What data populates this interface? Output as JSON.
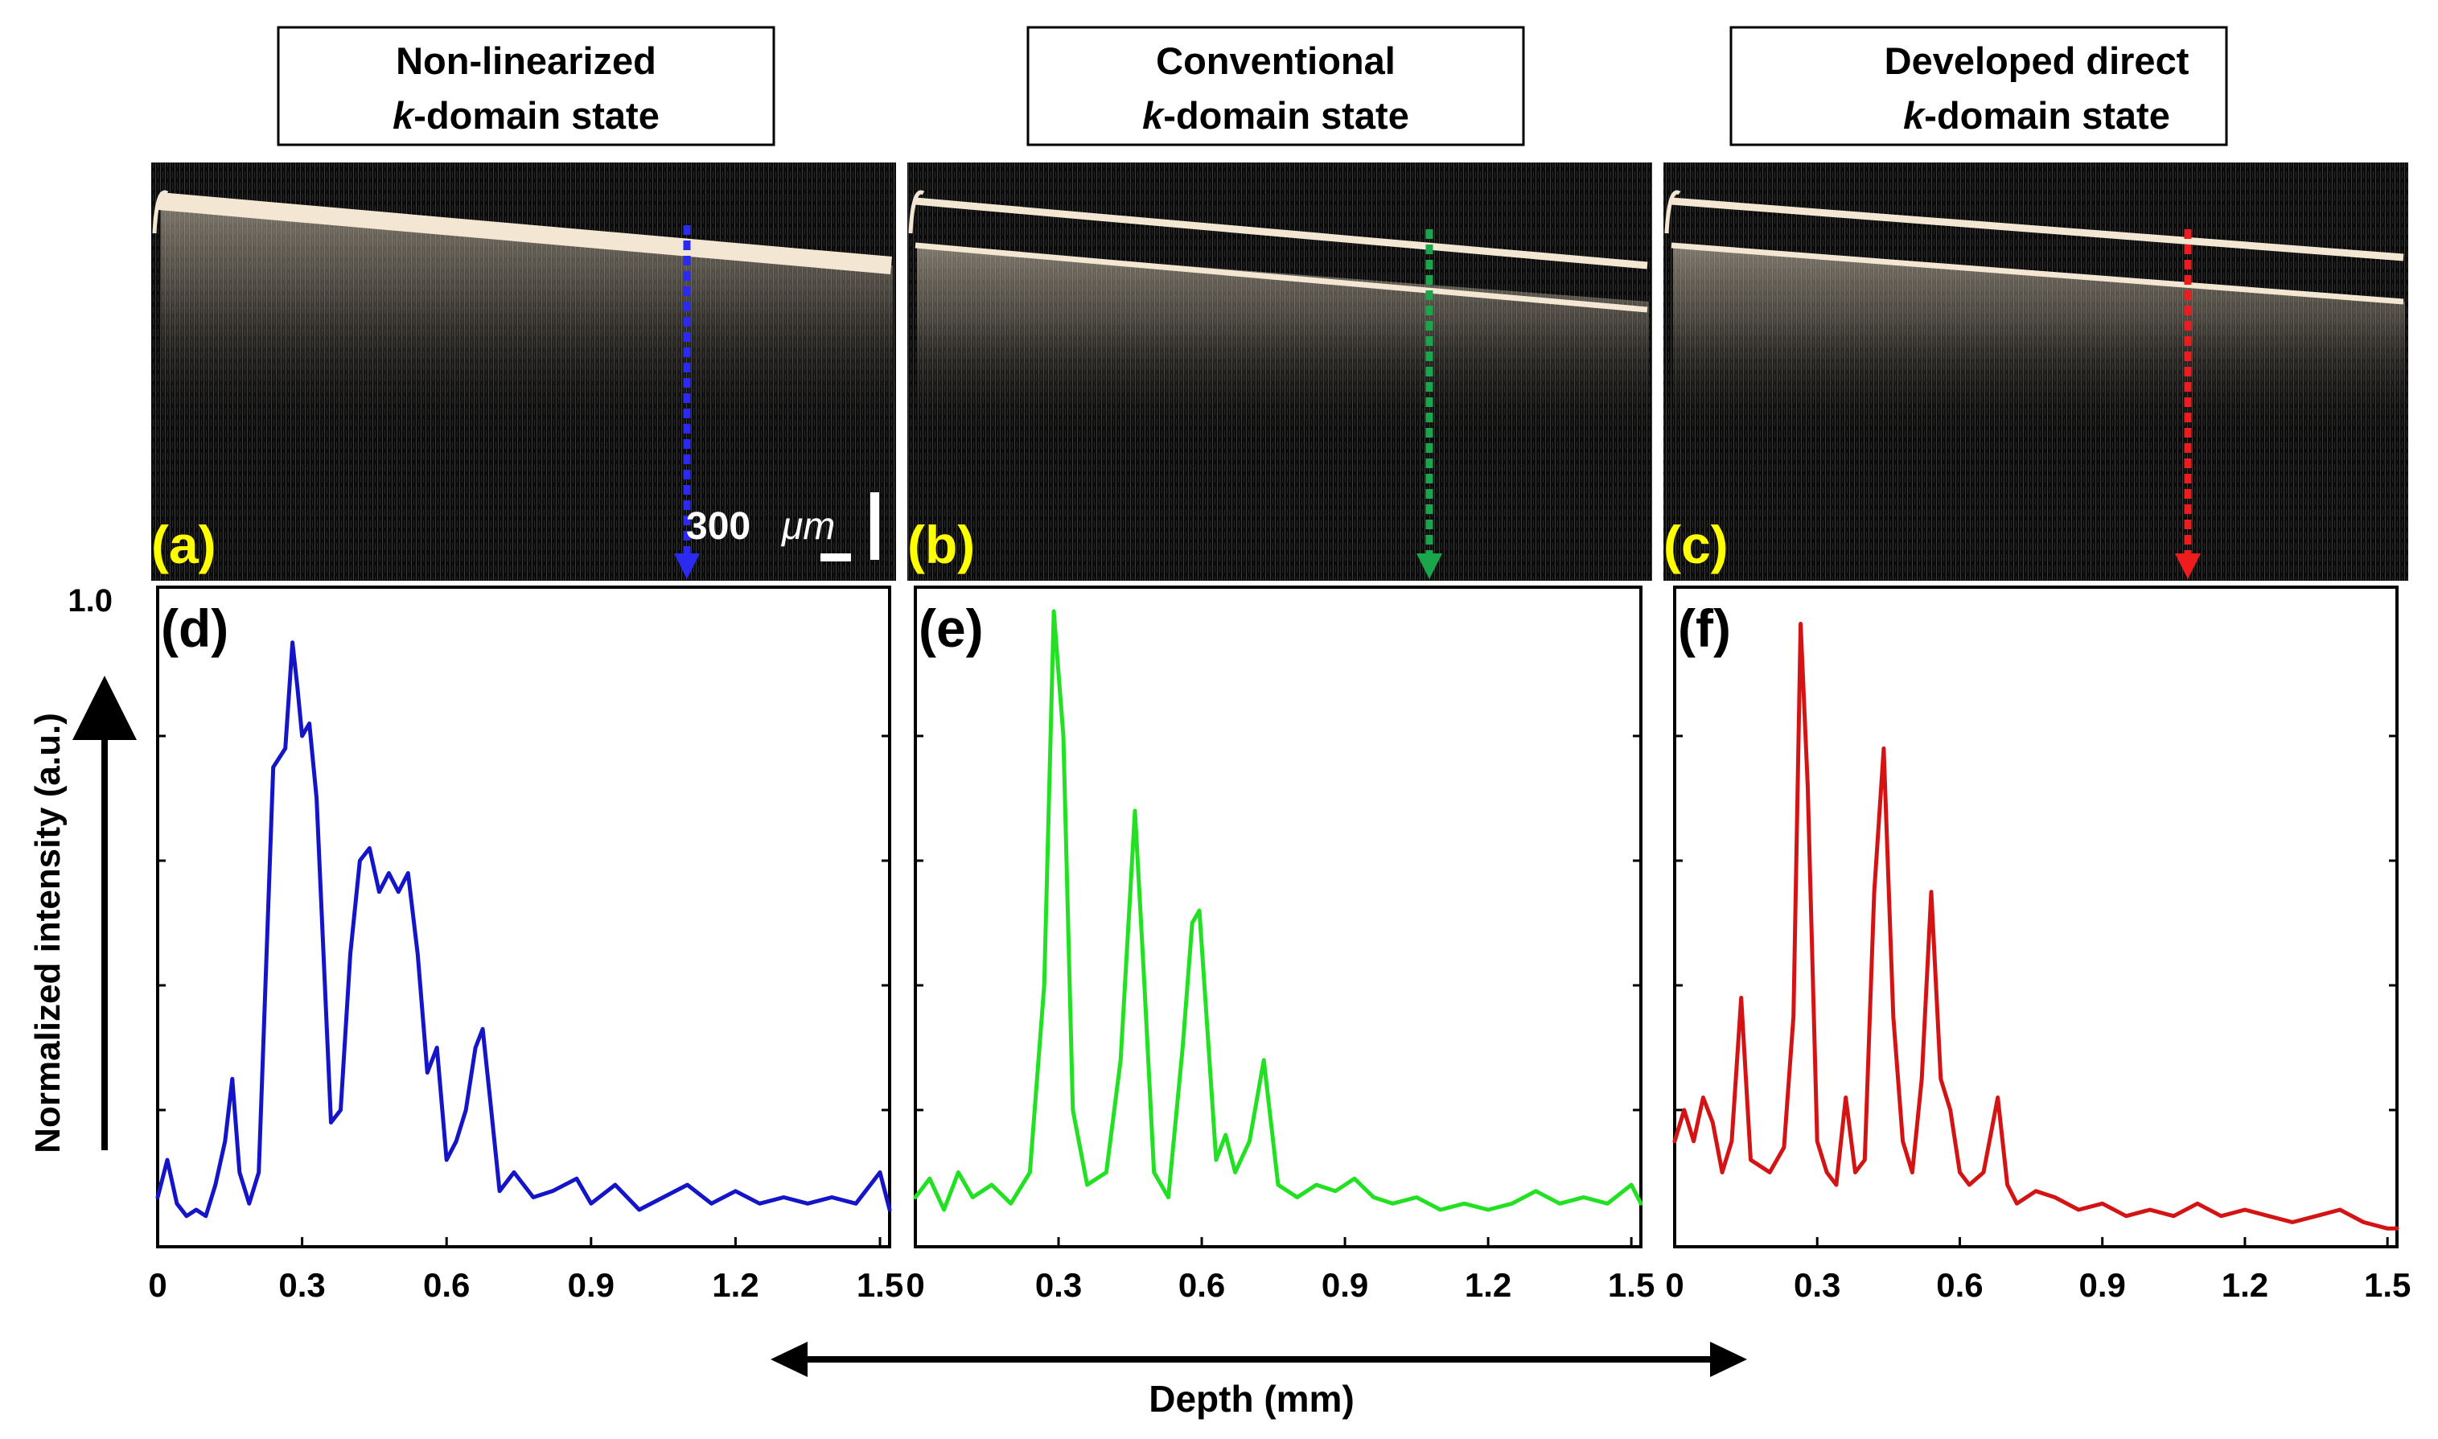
{
  "figure": {
    "panel_titles": [
      {
        "line1": "Non-linearized",
        "k": "k",
        "rest": "-domain state"
      },
      {
        "line1": "Conventional",
        "k": "k",
        "rest": "-domain state"
      },
      {
        "line1": "Developed direct",
        "k": "k",
        "rest": "-domain state"
      }
    ],
    "image_panels": [
      {
        "label": "(a)",
        "arrow_color": "#2a2af0"
      },
      {
        "label": "(b)",
        "arrow_color": "#1aa64a"
      },
      {
        "label": "(c)",
        "arrow_color": "#ee1c1c"
      }
    ],
    "scale_bar": {
      "value": "300",
      "unit": "μm"
    },
    "y_axis_label": "Normalized intensity (a.u.)",
    "y_axis_max_label": "1.0",
    "x_axis_label": "Depth (mm)",
    "label_color": "#ffff00",
    "image_bg": "#0b0b0b",
    "image_line_color": "#f3e6d2"
  },
  "chart_data": [
    {
      "type": "line",
      "panel": "(d)",
      "title": "Non-linearized k-domain state",
      "xlabel": "Depth (mm)",
      "ylabel": "Normalized intensity (a.u.)",
      "xlim": [
        0,
        1.52
      ],
      "ylim": [
        0,
        1.0
      ],
      "xticks": [
        0,
        0.3,
        0.6,
        0.9,
        1.2,
        1.5
      ],
      "xtick_labels": [
        "0",
        "0.3",
        "0.6",
        "0.9",
        "1.2",
        "1.5"
      ],
      "color": "#1414c8",
      "x": [
        0.0,
        0.02,
        0.04,
        0.06,
        0.08,
        0.1,
        0.12,
        0.14,
        0.155,
        0.17,
        0.19,
        0.21,
        0.24,
        0.265,
        0.28,
        0.29,
        0.3,
        0.315,
        0.33,
        0.36,
        0.38,
        0.4,
        0.42,
        0.44,
        0.46,
        0.48,
        0.5,
        0.52,
        0.54,
        0.56,
        0.58,
        0.6,
        0.62,
        0.64,
        0.66,
        0.675,
        0.69,
        0.71,
        0.74,
        0.78,
        0.82,
        0.87,
        0.9,
        0.95,
        1.0,
        1.05,
        1.1,
        1.15,
        1.2,
        1.25,
        1.3,
        1.35,
        1.4,
        1.45,
        1.5,
        1.52
      ],
      "y": [
        0.06,
        0.12,
        0.05,
        0.03,
        0.04,
        0.03,
        0.08,
        0.15,
        0.25,
        0.1,
        0.05,
        0.1,
        0.75,
        0.78,
        0.95,
        0.88,
        0.8,
        0.82,
        0.7,
        0.18,
        0.2,
        0.45,
        0.6,
        0.62,
        0.55,
        0.58,
        0.55,
        0.58,
        0.45,
        0.26,
        0.3,
        0.12,
        0.15,
        0.2,
        0.3,
        0.33,
        0.22,
        0.07,
        0.1,
        0.06,
        0.07,
        0.09,
        0.05,
        0.08,
        0.04,
        0.06,
        0.08,
        0.05,
        0.07,
        0.05,
        0.06,
        0.05,
        0.06,
        0.05,
        0.1,
        0.04
      ]
    },
    {
      "type": "line",
      "panel": "(e)",
      "title": "Conventional k-domain state",
      "xlabel": "Depth (mm)",
      "ylabel": "Normalized intensity (a.u.)",
      "xlim": [
        0,
        1.52
      ],
      "ylim": [
        0,
        1.0
      ],
      "xticks": [
        0,
        0.3,
        0.6,
        0.9,
        1.2,
        1.5
      ],
      "xtick_labels": [
        "0",
        "0.3",
        "0.6",
        "0.9",
        "1.2",
        "1.5"
      ],
      "color": "#22e022",
      "x": [
        0.0,
        0.03,
        0.06,
        0.09,
        0.12,
        0.16,
        0.2,
        0.24,
        0.27,
        0.29,
        0.31,
        0.33,
        0.36,
        0.4,
        0.43,
        0.46,
        0.48,
        0.5,
        0.53,
        0.56,
        0.58,
        0.595,
        0.61,
        0.63,
        0.65,
        0.67,
        0.7,
        0.73,
        0.76,
        0.8,
        0.84,
        0.88,
        0.92,
        0.96,
        1.0,
        1.05,
        1.1,
        1.15,
        1.2,
        1.25,
        1.3,
        1.35,
        1.4,
        1.45,
        1.5,
        1.52
      ],
      "y": [
        0.06,
        0.09,
        0.04,
        0.1,
        0.06,
        0.08,
        0.05,
        0.1,
        0.4,
        1.0,
        0.8,
        0.2,
        0.08,
        0.1,
        0.28,
        0.68,
        0.4,
        0.1,
        0.06,
        0.3,
        0.5,
        0.52,
        0.35,
        0.12,
        0.16,
        0.1,
        0.15,
        0.28,
        0.08,
        0.06,
        0.08,
        0.07,
        0.09,
        0.06,
        0.05,
        0.06,
        0.04,
        0.05,
        0.04,
        0.05,
        0.07,
        0.05,
        0.06,
        0.05,
        0.08,
        0.05
      ]
    },
    {
      "type": "line",
      "panel": "(f)",
      "title": "Developed direct k-domain state",
      "xlabel": "Depth (mm)",
      "ylabel": "Normalized intensity (a.u.)",
      "xlim": [
        0,
        1.52
      ],
      "ylim": [
        0,
        1.0
      ],
      "xticks": [
        0,
        0.3,
        0.6,
        0.9,
        1.2,
        1.5
      ],
      "xtick_labels": [
        "0",
        "0.3",
        "0.6",
        "0.9",
        "1.2",
        "1.5"
      ],
      "color": "#d41414",
      "x": [
        0.0,
        0.02,
        0.04,
        0.06,
        0.08,
        0.1,
        0.12,
        0.14,
        0.16,
        0.2,
        0.23,
        0.25,
        0.265,
        0.28,
        0.3,
        0.32,
        0.34,
        0.36,
        0.38,
        0.4,
        0.42,
        0.44,
        0.46,
        0.48,
        0.5,
        0.52,
        0.54,
        0.56,
        0.58,
        0.6,
        0.62,
        0.65,
        0.68,
        0.7,
        0.72,
        0.76,
        0.8,
        0.85,
        0.9,
        0.95,
        1.0,
        1.05,
        1.1,
        1.15,
        1.2,
        1.25,
        1.3,
        1.35,
        1.4,
        1.45,
        1.5,
        1.52
      ],
      "y": [
        0.15,
        0.2,
        0.15,
        0.22,
        0.18,
        0.1,
        0.15,
        0.38,
        0.12,
        0.1,
        0.14,
        0.35,
        0.98,
        0.72,
        0.15,
        0.1,
        0.08,
        0.22,
        0.1,
        0.12,
        0.55,
        0.78,
        0.35,
        0.15,
        0.1,
        0.25,
        0.55,
        0.25,
        0.2,
        0.1,
        0.08,
        0.1,
        0.22,
        0.08,
        0.05,
        0.07,
        0.06,
        0.04,
        0.05,
        0.03,
        0.04,
        0.03,
        0.05,
        0.03,
        0.04,
        0.03,
        0.02,
        0.03,
        0.04,
        0.02,
        0.01,
        0.01
      ]
    }
  ]
}
